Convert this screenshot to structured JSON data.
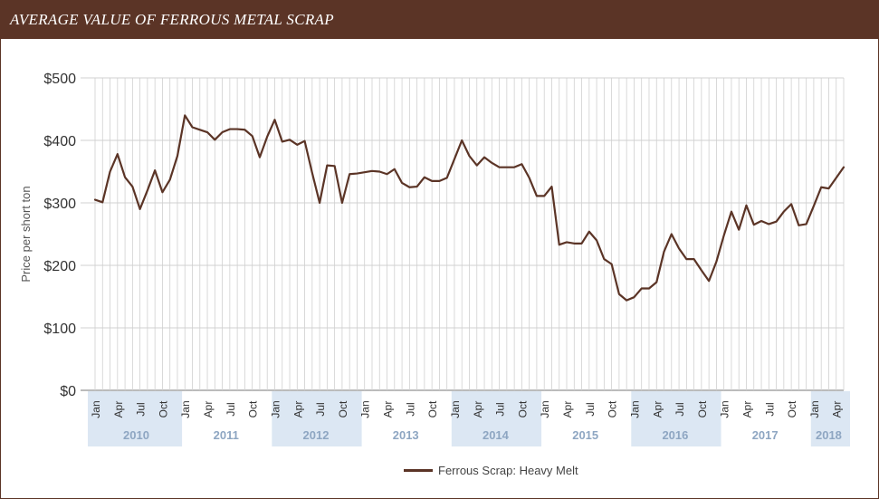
{
  "header": {
    "title": "Average Value of Ferrous Metal Scrap"
  },
  "colors": {
    "header_bg": "#5b3426",
    "line": "#5b3426",
    "grid": "#d0d0d0",
    "year_band": "#dce7f3",
    "year_text": "#8ea6c2",
    "tick_text": "#333333"
  },
  "chart_data": {
    "type": "line",
    "title": "Average Value of Ferrous Metal Scrap",
    "xlabel": "",
    "ylabel": "Price per short ton",
    "ylim": [
      0,
      500
    ],
    "y_ticks": [
      {
        "value": 0,
        "label": "$0"
      },
      {
        "value": 100,
        "label": "$100"
      },
      {
        "value": 200,
        "label": "$200"
      },
      {
        "value": 300,
        "label": "$300"
      },
      {
        "value": 400,
        "label": "$400"
      },
      {
        "value": 500,
        "label": "$500"
      }
    ],
    "month_labels": [
      "Jan",
      "Apr",
      "Jul",
      "Oct"
    ],
    "years": [
      "2010",
      "2011",
      "2012",
      "2013",
      "2014",
      "2015",
      "2016",
      "2017",
      "2018"
    ],
    "x_start": "2010-01",
    "x_end": "2018-04",
    "grid": true,
    "legend_position": "bottom",
    "series": [
      {
        "name": "Ferrous Scrap: Heavy Melt",
        "values": [
          305,
          301,
          350,
          378,
          341,
          326,
          290,
          320,
          352,
          317,
          337,
          375,
          440,
          421,
          417,
          413,
          401,
          413,
          418,
          418,
          417,
          407,
          373,
          406,
          433,
          398,
          401,
          393,
          399,
          348,
          300,
          360,
          359,
          300,
          346,
          347,
          349,
          351,
          350,
          346,
          354,
          332,
          325,
          326,
          341,
          335,
          335,
          340,
          370,
          400,
          375,
          360,
          373,
          364,
          357,
          357,
          357,
          362,
          340,
          311,
          311,
          326,
          233,
          237,
          235,
          235,
          254,
          240,
          210,
          202,
          154,
          144,
          149,
          163,
          163,
          173,
          222,
          250,
          227,
          210,
          210,
          192,
          175,
          206,
          248,
          286,
          257,
          296,
          265,
          271,
          266,
          270,
          286,
          298,
          264,
          266,
          295,
          325,
          323,
          340,
          357
        ]
      }
    ]
  }
}
